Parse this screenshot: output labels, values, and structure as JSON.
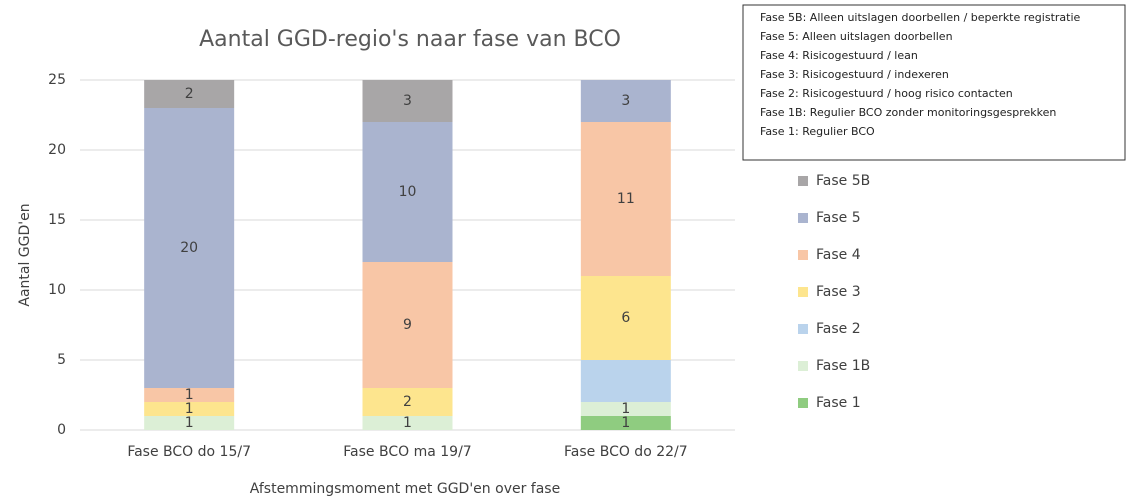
{
  "chart_data": {
    "type": "stacked_bar",
    "title": "Aantal GGD-regio's naar fase van BCO",
    "x_label": "Afstemmingsmoment met GGD'en over fase",
    "y_label": "Aantal GGD'en",
    "categories": [
      "Fase BCO do 15/7",
      "Fase BCO ma 19/7",
      "Fase BCO do 22/7"
    ],
    "series": [
      {
        "name": "Fase 1",
        "color": "#8fcc80",
        "values": [
          0,
          0,
          1
        ]
      },
      {
        "name": "Fase 1B",
        "color": "#dcefd6",
        "values": [
          1,
          1,
          1
        ]
      },
      {
        "name": "Fase 2",
        "color": "#bad3ec",
        "values": [
          0,
          0,
          3
        ],
        "value_labels": [
          null,
          null,
          null
        ]
      },
      {
        "name": "Fase 3",
        "color": "#fde58e",
        "values": [
          1,
          2,
          6
        ]
      },
      {
        "name": "Fase 4",
        "color": "#f8c6a6",
        "values": [
          1,
          9,
          11
        ]
      },
      {
        "name": "Fase 5",
        "color": "#aab4cf",
        "values": [
          20,
          10,
          3
        ]
      },
      {
        "name": "Fase 5B",
        "color": "#a8a6a7",
        "values": [
          2,
          3,
          0
        ]
      }
    ],
    "ylim": [
      0,
      25
    ],
    "yticks": [
      0,
      5,
      10,
      15,
      20,
      25
    ],
    "grid": true,
    "legend": "right",
    "annotations": [
      "Fase 5B: Alleen uitslagen doorbellen / beperkte registratie",
      "Fase 5: Alleen uitslagen doorbellen",
      "Fase 4: Risicogestuurd / lean",
      "Fase 3: Risicogestuurd / indexeren",
      "Fase 2: Risicogestuurd / hoog risico contacten",
      "Fase 1B: Regulier BCO zonder monitoringsgesprekken",
      "Fase 1: Regulier BCO"
    ]
  }
}
